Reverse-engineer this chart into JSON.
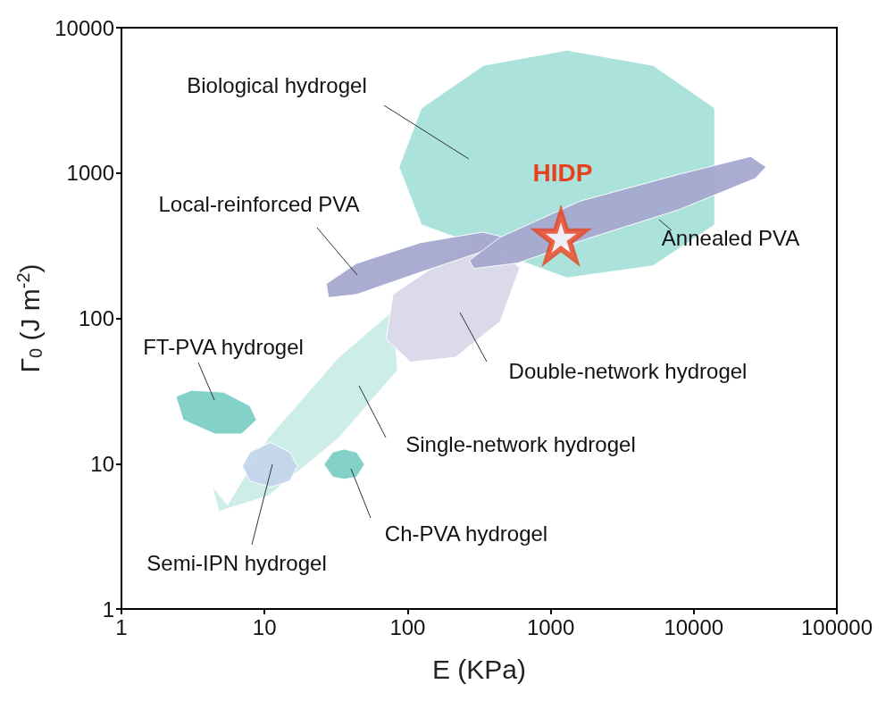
{
  "chart_data": {
    "type": "area",
    "xlabel": "E (KPa)",
    "ylabel": "Γ$_{0}$ (J m$^{-2}$)",
    "log": "xy",
    "grid": false,
    "legend": false,
    "xlim": [
      1,
      100000
    ],
    "xticks": [
      1,
      10,
      100,
      1000,
      10000,
      100000
    ],
    "ylim": [
      1,
      10000
    ],
    "yticks": [
      1,
      10,
      100,
      1000,
      10000
    ],
    "series": [
      {
        "name": "Biological hydrogel",
        "color": "#a6e0da",
        "x": [
          14000,
          5200,
          1300,
          340,
          125,
          87,
          125,
          1300,
          5200,
          14000
        ],
        "values": [
          2800,
          5500,
          7000,
          5500,
          2800,
          1100,
          440,
          190,
          230,
          440
        ]
      },
      {
        "name": "Single-network hydrogel",
        "color": "#c9ece7",
        "x": [
          5.5,
          10.6,
          33,
          79,
          85,
          33,
          10.6,
          4.8,
          4.3
        ],
        "values": [
          5.2,
          15,
          54,
          113,
          44,
          15,
          6,
          4.7,
          7
        ]
      },
      {
        "name": "Double-network hydrogel",
        "color": "#d8d8ea",
        "x": [
          79,
          333,
          608,
          443,
          216,
          105,
          71
        ],
        "values": [
          146,
          381,
          222,
          95,
          54,
          50,
          72
        ]
      },
      {
        "name": "Local-reinforced PVA",
        "color": "#a5a8cf",
        "x": [
          27,
          44,
          122,
          333,
          456,
          357,
          122,
          44,
          28
        ],
        "values": [
          173,
          239,
          331,
          392,
          365,
          295,
          207,
          146,
          139
        ]
      },
      {
        "name": "Annealed PVA",
        "color": "#a5a8cf",
        "x": [
          270,
          440,
          1600,
          7900,
          25000,
          32000,
          27000,
          7900,
          1600,
          590,
          290
        ],
        "values": [
          250,
          360,
          640,
          980,
          1300,
          1100,
          920,
          560,
          340,
          240,
          220
        ]
      },
      {
        "name": "FT-PVA hydrogel",
        "color": "#7ccfc5",
        "x": [
          2.4,
          3.1,
          5.2,
          7.9,
          8.8,
          6.9,
          4.5,
          2.7
        ],
        "values": [
          29,
          32,
          31,
          25,
          20,
          16,
          16,
          20
        ]
      },
      {
        "name": "Semi-IPN hydrogel",
        "color": "#c3d6ea",
        "x": [
          7,
          7.9,
          11,
          15,
          17,
          15,
          11,
          7.9
        ],
        "values": [
          9.6,
          12,
          14,
          12,
          9.6,
          7.6,
          6.9,
          7.6
        ]
      },
      {
        "name": "Ch-PVA hydrogel",
        "color": "#7ccfc5",
        "x": [
          26,
          30,
          36,
          44,
          50,
          44,
          36,
          30
        ],
        "values": [
          9.9,
          12,
          12.6,
          12,
          9.9,
          8.1,
          7.8,
          8.1
        ]
      },
      {
        "name": "HIDP",
        "type": "scatter",
        "marker": "star",
        "color": "#e8401c",
        "x": [
          1180
        ],
        "values": [
          365
        ]
      }
    ]
  }
}
